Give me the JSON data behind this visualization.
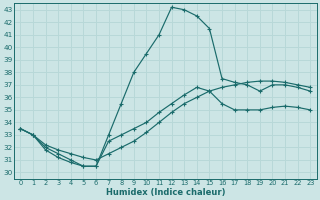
{
  "xlabel": "Humidex (Indice chaleur)",
  "bg_color": "#cce5e5",
  "line_color": "#1a6b6b",
  "grid_color": "#b8d8d8",
  "xlim": [
    -0.5,
    23.5
  ],
  "ylim": [
    29.5,
    43.5
  ],
  "xticks": [
    0,
    1,
    2,
    3,
    4,
    5,
    6,
    7,
    8,
    9,
    10,
    11,
    12,
    13,
    14,
    15,
    16,
    17,
    18,
    19,
    20,
    21,
    22,
    23
  ],
  "yticks": [
    30,
    31,
    32,
    33,
    34,
    35,
    36,
    37,
    38,
    39,
    40,
    41,
    42,
    43
  ],
  "curve1_x": [
    0,
    1,
    2,
    3,
    4,
    5,
    6,
    7,
    8,
    9,
    10,
    11,
    12,
    13,
    14,
    15,
    16,
    17,
    18,
    19,
    20,
    21,
    22,
    23
  ],
  "curve1_y": [
    33.5,
    33.0,
    32.0,
    31.5,
    31.0,
    30.5,
    30.5,
    33.0,
    35.5,
    38.0,
    39.5,
    41.0,
    43.2,
    43.0,
    42.5,
    41.5,
    37.5,
    37.2,
    37.0,
    36.5,
    37.0,
    37.0,
    36.8,
    36.5
  ],
  "curve2_x": [
    0,
    1,
    2,
    3,
    4,
    5,
    6,
    7,
    8,
    9,
    10,
    11,
    12,
    13,
    14,
    15,
    16,
    17,
    18,
    19,
    20,
    21,
    22,
    23
  ],
  "curve2_y": [
    33.5,
    33.0,
    32.2,
    31.8,
    31.5,
    31.2,
    31.0,
    31.5,
    32.0,
    32.5,
    33.2,
    34.0,
    34.8,
    35.5,
    36.0,
    36.5,
    36.8,
    37.0,
    37.2,
    37.3,
    37.3,
    37.2,
    37.0,
    36.8
  ],
  "curve3_x": [
    0,
    1,
    2,
    3,
    4,
    5,
    6,
    7,
    8,
    9,
    10,
    11,
    12,
    13,
    14,
    15,
    16,
    17,
    18,
    19,
    20,
    21,
    22,
    23
  ],
  "curve3_y": [
    33.5,
    33.0,
    31.8,
    31.2,
    30.8,
    30.5,
    30.5,
    32.5,
    33.0,
    33.5,
    34.0,
    34.8,
    35.5,
    36.2,
    36.8,
    36.5,
    35.5,
    35.0,
    35.0,
    35.0,
    35.2,
    35.3,
    35.2,
    35.0
  ]
}
